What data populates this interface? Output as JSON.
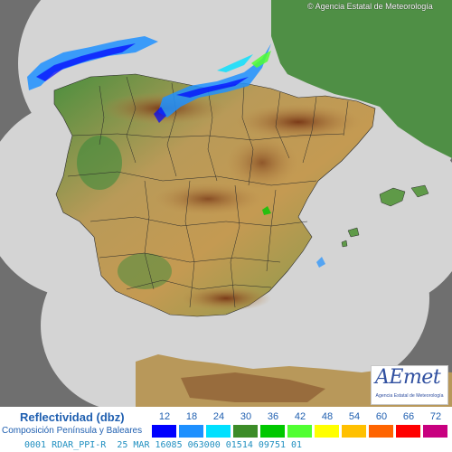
{
  "map": {
    "copyright": "© Agencia Estatal de Meteorología"
  },
  "logo": {
    "wordmark": "AEmet",
    "tagline": "Agencia Estatal de Meteorología"
  },
  "legend": {
    "title": "Reflectividad (dbz)",
    "subtitle": "Composición Península y Baleares",
    "scale": [
      {
        "label": "12",
        "color": "#0000ff"
      },
      {
        "label": "18",
        "color": "#1e90ff"
      },
      {
        "label": "24",
        "color": "#00e0ff"
      },
      {
        "label": "30",
        "color": "#3c8c28"
      },
      {
        "label": "36",
        "color": "#00c800"
      },
      {
        "label": "42",
        "color": "#50ff32"
      },
      {
        "label": "48",
        "color": "#ffff00"
      },
      {
        "label": "54",
        "color": "#ffc000"
      },
      {
        "label": "60",
        "color": "#ff6400"
      },
      {
        "label": "66",
        "color": "#ff0000"
      },
      {
        "label": "72",
        "color": "#c8007f"
      }
    ]
  },
  "status": {
    "text": "0001 RDAR_PPI-R  25 MAR 16085 063000 01514 09751 01"
  },
  "colors": {
    "outside_coverage": "#6f6f6f",
    "radar_coverage": "#d4d4d4",
    "land_low": "#3f8a3c",
    "land_mid": "#b89a55",
    "land_high": "#8a4a22",
    "borders": "#2a2a2a"
  }
}
